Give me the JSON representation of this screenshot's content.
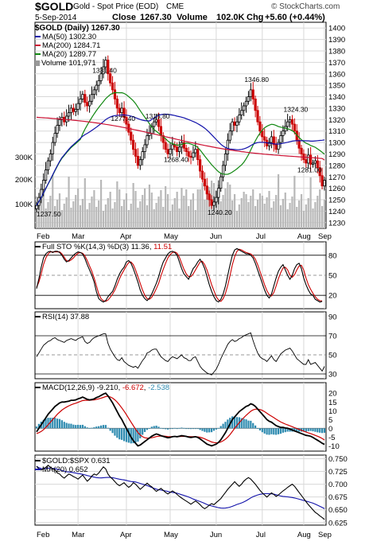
{
  "header": {
    "symbol": "$GOLD",
    "name": "Gold - Spot Price (EOD)",
    "exchange": "CME",
    "watermark": "© StockCharts.com",
    "date": "5-Sep-2014",
    "close_label": "Close",
    "close_value": "1267.30",
    "volume_label": "Volume",
    "volume_value": "102.0K",
    "chg_label": "Chg",
    "chg_value": "+5.60 (+0.44%)"
  },
  "colors": {
    "up_candle": "#000000",
    "down_candle": "#cc0000",
    "ma50": "#1111aa",
    "ma200": "#cc1133",
    "ma20": "#118811",
    "volume": "#b8b8b8",
    "macd_hist": "#2e8bb0",
    "grid": "#d8d8d8"
  },
  "chart_data": [
    {
      "type": "candlestick",
      "title": "$GOLD (Daily) 1267.30",
      "months": [
        "Feb",
        "Mar",
        "Apr",
        "May",
        "Jun",
        "Jul",
        "Aug",
        "Sep"
      ],
      "ylim": [
        1225,
        1405
      ],
      "yticks": [
        1230,
        1240,
        1250,
        1260,
        1270,
        1280,
        1290,
        1300,
        1310,
        1320,
        1330,
        1340,
        1350,
        1360,
        1370,
        1380,
        1390,
        1400
      ],
      "volume_ticks": [
        "100K",
        "200K",
        "300K"
      ],
      "annotations": [
        "1237.50",
        "1331.40",
        "1277.40",
        "1315.80",
        "1268.40",
        "1240.20",
        "1346.80",
        "1324.30",
        "1281.00"
      ],
      "series": [
        {
          "name": "$GOLD (Daily) 1267.30",
          "type": "candle"
        },
        {
          "name": "MA(50) 1302.30",
          "type": "line"
        },
        {
          "name": "MA(200) 1284.71",
          "type": "line"
        },
        {
          "name": "MA(20) 1289.77",
          "type": "line"
        },
        {
          "name": "Volume 101,971",
          "type": "bar"
        }
      ],
      "closes": [
        1245,
        1252,
        1259,
        1267,
        1276,
        1284,
        1290,
        1300,
        1308,
        1315,
        1320,
        1322,
        1318,
        1323,
        1326,
        1330,
        1327,
        1329,
        1334,
        1338,
        1342,
        1335,
        1332,
        1336,
        1342,
        1346,
        1350,
        1354,
        1360,
        1366,
        1372,
        1360,
        1352,
        1346,
        1338,
        1330,
        1326,
        1330,
        1322,
        1316,
        1309,
        1302,
        1294,
        1288,
        1280,
        1285,
        1292,
        1298,
        1306,
        1308,
        1314,
        1318,
        1320,
        1314,
        1306,
        1300,
        1294,
        1290,
        1294,
        1298,
        1296,
        1292,
        1296,
        1300,
        1295,
        1292,
        1288,
        1287,
        1291,
        1294,
        1285,
        1275,
        1268,
        1262,
        1255,
        1250,
        1245,
        1248,
        1252,
        1260,
        1270,
        1280,
        1290,
        1302,
        1310,
        1318,
        1315,
        1318,
        1324,
        1328,
        1332,
        1336,
        1340,
        1346,
        1338,
        1328,
        1318,
        1310,
        1305,
        1302,
        1297,
        1300,
        1305,
        1298,
        1294,
        1300,
        1306,
        1310,
        1314,
        1318,
        1320,
        1316,
        1310,
        1302,
        1295,
        1290,
        1285,
        1282,
        1289,
        1281,
        1282,
        1284,
        1278,
        1271,
        1262,
        1267
      ],
      "ma50_end": 1302.3,
      "ma200_end": 1284.71,
      "ma20_end": 1289.77
    },
    {
      "type": "line",
      "title": "Full STO %K(14,3) %D(3) 11.36, 11.51",
      "series_names": [
        "Full STO %K(14,3) %D(3)"
      ],
      "values_end": {
        "k": "11.36",
        "d": "11.51"
      },
      "ylim": [
        0,
        100
      ],
      "yticks": [
        20,
        50,
        80
      ],
      "k": [
        30,
        45,
        62,
        76,
        82,
        85,
        86,
        84,
        86,
        86,
        84,
        80,
        74,
        70,
        72,
        76,
        80,
        83,
        85,
        84,
        82,
        75,
        66,
        58,
        50,
        40,
        25,
        15,
        12,
        10,
        12,
        18,
        22,
        26,
        34,
        44,
        52,
        58,
        62,
        70,
        72,
        68,
        60,
        50,
        40,
        28,
        20,
        15,
        12,
        16,
        22,
        30,
        38,
        48,
        60,
        70,
        76,
        82,
        85,
        86,
        84,
        80,
        70,
        60,
        52,
        48,
        44,
        52,
        60,
        64,
        70,
        74,
        68,
        60,
        48,
        36,
        26,
        18,
        12,
        10,
        14,
        22,
        34,
        50,
        66,
        80,
        88,
        90,
        88,
        86,
        84,
        82,
        82,
        80,
        76,
        68,
        58,
        48,
        38,
        28,
        20,
        16,
        22,
        34,
        46,
        56,
        62,
        66,
        58,
        50,
        44,
        50,
        60,
        66,
        68,
        60,
        46,
        36,
        28,
        22,
        20,
        14,
        12,
        10,
        11
      ],
      "d": [
        32,
        40,
        52,
        66,
        76,
        82,
        85,
        85,
        85,
        85,
        85,
        82,
        77,
        72,
        71,
        73,
        76,
        80,
        83,
        84,
        83,
        79,
        72,
        64,
        56,
        46,
        34,
        22,
        15,
        12,
        11,
        13,
        17,
        22,
        28,
        36,
        45,
        52,
        58,
        64,
        69,
        70,
        66,
        58,
        48,
        38,
        28,
        20,
        15,
        14,
        17,
        23,
        30,
        38,
        49,
        59,
        68,
        76,
        81,
        84,
        85,
        83,
        77,
        68,
        59,
        52,
        48,
        48,
        52,
        58,
        64,
        70,
        71,
        66,
        58,
        47,
        36,
        27,
        18,
        13,
        11,
        15,
        23,
        35,
        50,
        66,
        78,
        86,
        89,
        88,
        86,
        84,
        83,
        82,
        79,
        74,
        66,
        56,
        46,
        36,
        27,
        21,
        19,
        24,
        34,
        45,
        54,
        61,
        62,
        58,
        50,
        47,
        51,
        58,
        64,
        65,
        58,
        46,
        36,
        29,
        23,
        18,
        14,
        12,
        11.5
      ]
    },
    {
      "type": "line",
      "title": "RSI(14) 37.88",
      "series_names": [
        "RSI(14)"
      ],
      "value_end": "37.88",
      "ylim": [
        25,
        95
      ],
      "yticks": [
        30,
        50,
        70,
        90
      ],
      "values": [
        48,
        52,
        56,
        60,
        62,
        64,
        65,
        67,
        68,
        66,
        65,
        64,
        63,
        65,
        66,
        67,
        66,
        65,
        67,
        68,
        69,
        64,
        62,
        63,
        66,
        68,
        69,
        70,
        71,
        72,
        72,
        62,
        56,
        52,
        48,
        45,
        44,
        47,
        43,
        41,
        39,
        38,
        37,
        38,
        36,
        40,
        44,
        47,
        52,
        53,
        55,
        56,
        56,
        52,
        48,
        46,
        44,
        43,
        46,
        48,
        47,
        46,
        48,
        50,
        47,
        46,
        44,
        44,
        47,
        48,
        43,
        38,
        35,
        33,
        31,
        30,
        29,
        32,
        35,
        40,
        46,
        51,
        56,
        61,
        64,
        66,
        64,
        65,
        67,
        68,
        70,
        71,
        72,
        73,
        65,
        58,
        52,
        48,
        46,
        45,
        43,
        46,
        49,
        45,
        43,
        47,
        51,
        53,
        55,
        56,
        57,
        54,
        50,
        46,
        44,
        42,
        40,
        40,
        45,
        40,
        41,
        42,
        39,
        36,
        33,
        37.88
      ]
    },
    {
      "type": "line",
      "title": "MACD(12,26,9) -9.210, -6.672, -2.538",
      "series_names": [
        "MACD(12,26,9)"
      ],
      "values_end": {
        "macd": "-9.210",
        "signal": "-6.672",
        "histogram": "-2.538"
      },
      "ylim": [
        -13,
        26
      ],
      "yticks": [
        -10,
        -5,
        0,
        5,
        10,
        15,
        20
      ],
      "macd": [
        -2,
        0,
        2,
        4,
        6,
        8,
        9.5,
        11,
        12.5,
        13.5,
        14.5,
        15,
        15,
        15.2,
        15.5,
        16,
        16,
        16.2,
        16.8,
        17.2,
        17.8,
        17.2,
        16.5,
        16.2,
        16.4,
        16.8,
        17.5,
        18,
        18.8,
        19.5,
        20,
        18.5,
        16.5,
        14.5,
        12,
        9.5,
        7,
        5,
        2.5,
        0,
        -2.5,
        -5,
        -7,
        -8.5,
        -10,
        -9.5,
        -8.5,
        -7.5,
        -6.5,
        -5.5,
        -4.5,
        -3.8,
        -3.2,
        -3.6,
        -4.2,
        -4.6,
        -5,
        -5.4,
        -5.2,
        -4.8,
        -4.6,
        -4.8,
        -4.5,
        -4.2,
        -4.4,
        -4.6,
        -5,
        -5.2,
        -5,
        -4.8,
        -5.2,
        -6,
        -7,
        -8,
        -9,
        -9.5,
        -10,
        -9.5,
        -9,
        -8,
        -6.5,
        -4.5,
        -2.5,
        0,
        2.5,
        5,
        6.5,
        8,
        9.5,
        10.5,
        11.5,
        12.5,
        13,
        14,
        13.5,
        12.5,
        11,
        9.5,
        8,
        6.5,
        5,
        4,
        3.5,
        2.5,
        1.5,
        1,
        0.5,
        0.5,
        0.2,
        0,
        -0.5,
        -1,
        -1.5,
        -2,
        -2.5,
        -3,
        -3.5,
        -4,
        -4.2,
        -4.5,
        -5.2,
        -6,
        -6.8,
        -7.6,
        -8.5,
        -9.21
      ],
      "signal": [
        -3,
        -2.5,
        -1.8,
        -0.8,
        0.5,
        2,
        3.5,
        5,
        6.5,
        8,
        9.2,
        10.4,
        11.3,
        12.1,
        12.8,
        13.4,
        13.9,
        14.3,
        14.8,
        15.3,
        15.8,
        16,
        16,
        16,
        16.1,
        16.2,
        16.5,
        16.8,
        17.2,
        17.6,
        18.1,
        18.2,
        17.9,
        17.2,
        16.2,
        14.9,
        13.3,
        11.6,
        9.8,
        7.8,
        5.7,
        3.6,
        1.5,
        -0.5,
        -2.4,
        -3.8,
        -4.8,
        -5.4,
        -5.6,
        -5.6,
        -5.4,
        -5.1,
        -4.7,
        -4.5,
        -4.4,
        -4.4,
        -4.5,
        -4.7,
        -4.8,
        -4.8,
        -4.8,
        -4.8,
        -4.7,
        -4.6,
        -4.6,
        -4.6,
        -4.7,
        -4.8,
        -4.8,
        -4.8,
        -4.9,
        -5.1,
        -5.5,
        -6,
        -6.6,
        -7.2,
        -7.8,
        -8.1,
        -8.3,
        -8.2,
        -7.8,
        -7.1,
        -6.2,
        -5,
        -3.5,
        -1.8,
        0,
        1.6,
        3.2,
        4.7,
        6.1,
        7.4,
        8.6,
        9.7,
        10.5,
        10.9,
        10.9,
        10.7,
        10.2,
        9.5,
        8.6,
        7.7,
        6.9,
        6.1,
        5.2,
        4.4,
        3.6,
        3,
        2.4,
        1.9,
        1.4,
        0.9,
        0.4,
        -0.1,
        -0.6,
        -1.1,
        -1.6,
        -2.1,
        -2.6,
        -3,
        -3.5,
        -4,
        -4.5,
        -5.1,
        -5.8,
        -6.672
      ],
      "hist_label": "-2.538"
    },
    {
      "type": "line",
      "title": "$GOLD:$SPX 0.631",
      "series_names": [
        "$GOLD:$SPX",
        "MA(20) 0.652"
      ],
      "value_end": "0.631",
      "ma20_end": "0.652",
      "ylim": [
        0.62,
        0.757
      ],
      "yticks": [
        0.625,
        0.65,
        0.675,
        0.7,
        0.725,
        0.75
      ],
      "values": [
        0.735,
        0.73,
        0.728,
        0.73,
        0.733,
        0.737,
        0.733,
        0.73,
        0.728,
        0.722,
        0.72,
        0.715,
        0.712,
        0.716,
        0.72,
        0.718,
        0.715,
        0.713,
        0.71,
        0.714,
        0.718,
        0.712,
        0.706,
        0.71,
        0.716,
        0.72,
        0.718,
        0.722,
        0.728,
        0.734,
        0.73,
        0.72,
        0.714,
        0.71,
        0.705,
        0.7,
        0.697,
        0.7,
        0.703,
        0.698,
        0.694,
        0.697,
        0.703,
        0.7,
        0.695,
        0.69,
        0.694,
        0.698,
        0.702,
        0.698,
        0.695,
        0.69,
        0.686,
        0.689,
        0.692,
        0.688,
        0.684,
        0.681,
        0.684,
        0.687,
        0.684,
        0.68,
        0.676,
        0.673,
        0.67,
        0.667,
        0.664,
        0.661,
        0.664,
        0.667,
        0.664,
        0.66,
        0.655,
        0.652,
        0.655,
        0.659,
        0.662,
        0.66,
        0.664,
        0.668,
        0.672,
        0.678,
        0.684,
        0.69,
        0.695,
        0.7,
        0.705,
        0.7,
        0.696,
        0.7,
        0.706,
        0.71,
        0.713,
        0.71,
        0.705,
        0.7,
        0.694,
        0.688,
        0.683,
        0.679,
        0.675,
        0.679,
        0.683,
        0.68,
        0.676,
        0.679,
        0.683,
        0.687,
        0.69,
        0.694,
        0.697,
        0.7,
        0.696,
        0.69,
        0.684,
        0.678,
        0.672,
        0.666,
        0.66,
        0.655,
        0.65,
        0.645,
        0.642,
        0.638,
        0.635,
        0.631
      ]
    }
  ],
  "x_axis": {
    "months": [
      "Feb",
      "Mar",
      "Apr",
      "May",
      "Jun",
      "Jul",
      "Aug",
      "Sep"
    ]
  }
}
